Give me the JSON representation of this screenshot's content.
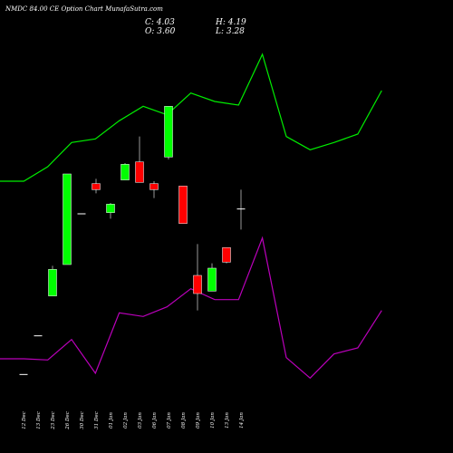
{
  "chart_data": {
    "type": "candlestick",
    "title": "NMDC 84.00 CE Option Chart MunafaSutra.com",
    "ohlc_readout": {
      "close": "C: 4.03",
      "open": "O: 3.60",
      "high": "H: 4.19",
      "low": "L: 3.28"
    },
    "colors": {
      "background": "#000000",
      "up": "#00ff00",
      "down": "#ff0000",
      "upper_band": "#00ee00",
      "lower_band": "#bb00bb",
      "text": "#ffffff"
    },
    "categories": [
      "12 Dec",
      "13 Dec",
      "23 Dec",
      "26 Dec",
      "30 Dec",
      "31 Dec",
      "01 Jan",
      "02 Jan",
      "03 Jan",
      "06 Jan",
      "07 Jan",
      "08 Jan",
      "09 Jan",
      "10 Jan",
      "13 Jan",
      "14 Jan"
    ],
    "candles": [
      {
        "open": 2.2,
        "high": 2.2,
        "low": 2.2,
        "close": 2.2
      },
      {
        "open": 2.52,
        "high": 2.52,
        "low": 2.52,
        "close": 2.52
      },
      {
        "open": 2.85,
        "high": 3.1,
        "low": 2.85,
        "close": 3.07
      },
      {
        "open": 3.11,
        "high": 3.86,
        "low": 3.11,
        "close": 3.86
      },
      {
        "open": 3.53,
        "high": 3.53,
        "low": 3.53,
        "close": 3.53
      },
      {
        "open": 3.78,
        "high": 3.82,
        "low": 3.7,
        "close": 3.73
      },
      {
        "open": 3.54,
        "high": 3.62,
        "low": 3.49,
        "close": 3.61
      },
      {
        "open": 3.81,
        "high": 3.95,
        "low": 3.81,
        "close": 3.94
      },
      {
        "open": 3.96,
        "high": 4.17,
        "low": 3.79,
        "close": 3.79
      },
      {
        "open": 3.78,
        "high": 3.8,
        "low": 3.66,
        "close": 3.73
      },
      {
        "open": 4.0,
        "high": 4.42,
        "low": 3.98,
        "close": 4.42
      },
      {
        "open": 3.76,
        "high": 3.76,
        "low": 3.45,
        "close": 3.45
      },
      {
        "open": 3.02,
        "high": 3.28,
        "low": 2.73,
        "close": 2.87
      },
      {
        "open": 2.89,
        "high": 3.12,
        "low": 2.89,
        "close": 3.08
      },
      {
        "open": 3.25,
        "high": 3.25,
        "low": 3.12,
        "close": 3.13
      },
      {
        "open": 3.57,
        "high": 3.73,
        "low": 3.4,
        "close": 3.57
      }
    ],
    "upper_band": [
      3.8,
      3.8,
      3.92,
      4.12,
      4.15,
      4.3,
      4.42,
      4.35,
      4.53,
      4.46,
      4.43,
      4.85,
      4.17,
      4.06,
      4.12,
      4.19,
      4.55
    ],
    "lower_band": [
      2.33,
      2.33,
      2.32,
      2.49,
      2.21,
      2.71,
      2.68,
      2.76,
      2.91,
      2.82,
      2.82,
      3.33,
      2.34,
      2.17,
      2.37,
      2.42,
      2.73
    ],
    "band_x": [
      0,
      1,
      2,
      3,
      4,
      5,
      6,
      7,
      8,
      9,
      10,
      11,
      12,
      13,
      14,
      15,
      16
    ],
    "ylim": [
      2.0,
      5.0
    ],
    "grid": false,
    "legend": "none"
  }
}
